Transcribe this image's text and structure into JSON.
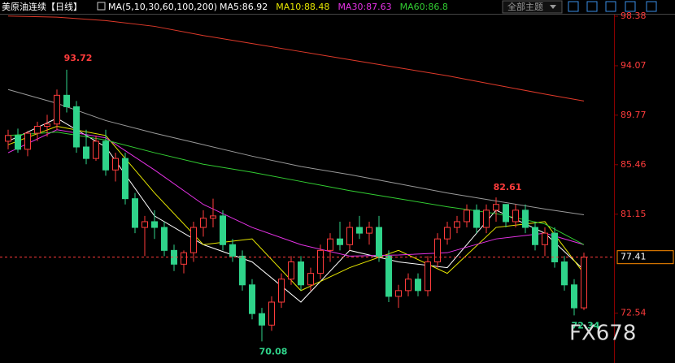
{
  "chart_data": {
    "type": "candlestick",
    "title": "美原油连续【日线】",
    "indicator": "MA(5,10,30,60,100,200)",
    "theme_menu": "全部主题",
    "watermark": "FX678",
    "up_color": "#ff3c3c",
    "down_color": "#2fd38a",
    "ylim": [
      68.2,
      98.52
    ],
    "yticks": [
      98.38,
      94.07,
      89.77,
      85.46,
      81.15,
      72.54
    ],
    "open": [
      87.5,
      88.0,
      86.8,
      88.2,
      88.8,
      89.0,
      91.5,
      90.5,
      87.0,
      86.0,
      87.5,
      85.0,
      86.0,
      82.5,
      80.0,
      80.5,
      80.0,
      78.0,
      76.8,
      77.8,
      80.0,
      80.8,
      81.0,
      78.5,
      77.5,
      75.0,
      72.5,
      71.5,
      73.5,
      75.5,
      77.0,
      75.0,
      76.0,
      78.0,
      79.0,
      78.5,
      80.0,
      79.5,
      80.0,
      77.5,
      74.0,
      74.5,
      75.5,
      74.5,
      77.0,
      79.0,
      80.0,
      80.5,
      81.5,
      80.0,
      81.5,
      82.0,
      80.5,
      81.5,
      80.0,
      78.5,
      79.5,
      77.0,
      75.0,
      73.0
    ],
    "high": [
      88.5,
      88.6,
      88.4,
      89.2,
      89.8,
      92.0,
      93.72,
      91.0,
      88.5,
      88.0,
      88.5,
      86.5,
      86.5,
      83.0,
      81.0,
      81.5,
      80.5,
      78.5,
      78.0,
      80.5,
      81.5,
      82.5,
      81.5,
      79.0,
      78.0,
      75.5,
      73.0,
      74.0,
      76.0,
      77.5,
      77.5,
      76.5,
      78.5,
      79.5,
      80.5,
      80.5,
      81.0,
      80.5,
      81.0,
      78.0,
      75.0,
      76.0,
      76.0,
      77.5,
      79.5,
      80.5,
      81.0,
      82.0,
      82.0,
      82.0,
      82.61,
      82.0,
      82.0,
      82.0,
      80.5,
      80.0,
      80.0,
      77.5,
      75.5,
      77.8
    ],
    "low": [
      86.8,
      86.5,
      86.2,
      87.5,
      87.9,
      88.5,
      90.0,
      86.5,
      85.5,
      85.8,
      84.5,
      84.0,
      82.0,
      79.5,
      77.5,
      79.0,
      77.5,
      76.2,
      76.0,
      77.0,
      79.2,
      80.0,
      78.0,
      77.0,
      74.5,
      72.0,
      70.08,
      71.0,
      73.0,
      75.0,
      74.5,
      74.5,
      75.5,
      77.0,
      78.0,
      78.0,
      79.0,
      78.5,
      77.0,
      73.5,
      73.0,
      74.0,
      74.0,
      74.0,
      76.5,
      78.5,
      79.5,
      80.0,
      79.5,
      79.5,
      80.5,
      80.0,
      80.0,
      79.5,
      78.0,
      77.5,
      76.5,
      74.5,
      72.34,
      72.8
    ],
    "close": [
      88.0,
      86.8,
      88.2,
      88.8,
      89.0,
      91.5,
      90.5,
      87.0,
      86.0,
      87.5,
      85.0,
      86.0,
      82.5,
      80.0,
      80.5,
      80.0,
      78.0,
      76.8,
      77.8,
      80.0,
      80.8,
      81.0,
      78.5,
      77.5,
      75.0,
      72.5,
      71.5,
      73.5,
      75.5,
      77.0,
      75.0,
      76.0,
      78.0,
      79.0,
      78.5,
      80.0,
      79.5,
      80.0,
      77.5,
      74.0,
      74.5,
      75.5,
      74.5,
      77.0,
      79.0,
      80.0,
      80.5,
      81.5,
      80.0,
      81.5,
      82.0,
      80.5,
      81.5,
      80.0,
      78.5,
      79.5,
      77.0,
      75.0,
      73.0,
      77.41
    ],
    "series": [
      {
        "name": "MA5:86.92",
        "color": "#ffffff",
        "x": [
          0,
          5,
          10,
          15,
          20,
          25,
          30,
          35,
          40,
          45,
          50,
          55,
          59
        ],
        "values": [
          87.5,
          89.5,
          87.0,
          81.0,
          78.5,
          77.0,
          73.5,
          78.0,
          77.0,
          76.5,
          81.5,
          79.5,
          76.3
        ]
      },
      {
        "name": "MA10:88.48",
        "color": "#e6e600",
        "x": [
          0,
          5,
          10,
          15,
          20,
          25,
          30,
          35,
          40,
          45,
          50,
          55,
          59
        ],
        "values": [
          87.2,
          88.8,
          88.0,
          83.0,
          78.5,
          79.0,
          74.5,
          76.5,
          78.0,
          76.0,
          80.0,
          80.5,
          76.0
        ]
      },
      {
        "name": "MA30:87.63",
        "color": "#e632e6",
        "x": [
          0,
          5,
          10,
          15,
          20,
          25,
          30,
          35,
          40,
          45,
          50,
          55,
          59
        ],
        "values": [
          86.5,
          88.5,
          87.8,
          85.0,
          82.0,
          80.0,
          78.5,
          77.5,
          77.6,
          77.8,
          79.0,
          79.5,
          78.5
        ]
      },
      {
        "name": "MA60:86.8",
        "color": "#32cd32",
        "x": [
          0,
          5,
          10,
          15,
          20,
          25,
          30,
          35,
          40,
          45,
          50,
          55,
          59
        ],
        "values": [
          88.0,
          88.3,
          87.6,
          86.5,
          85.5,
          84.8,
          84.0,
          83.2,
          82.5,
          81.8,
          81.2,
          80.3,
          78.5
        ]
      },
      {
        "name": null,
        "color": "#9a9a9a",
        "x": [
          0,
          5,
          10,
          15,
          20,
          25,
          30,
          35,
          40,
          45,
          50,
          55,
          59
        ],
        "values": [
          92.0,
          90.8,
          89.3,
          88.2,
          87.2,
          86.2,
          85.3,
          84.6,
          83.8,
          83.0,
          82.3,
          81.6,
          81.1
        ]
      },
      {
        "name": null,
        "color": "#e03a2a",
        "x": [
          0,
          5,
          10,
          15,
          20,
          25,
          30,
          35,
          40,
          45,
          50,
          55,
          59
        ],
        "values": [
          98.4,
          98.3,
          98.0,
          97.5,
          96.7,
          96.0,
          95.3,
          94.6,
          93.9,
          93.2,
          92.4,
          91.6,
          91.0
        ]
      }
    ]
  }
}
